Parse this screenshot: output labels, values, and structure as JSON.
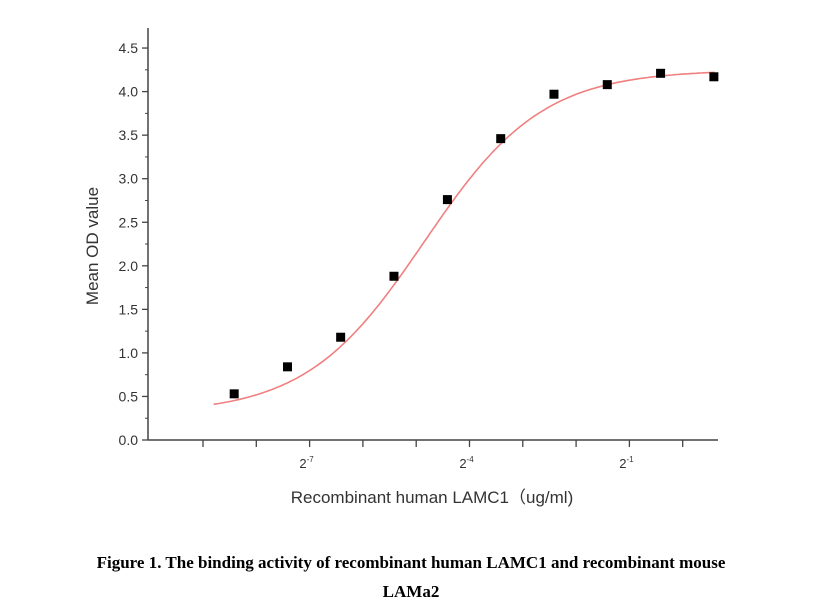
{
  "chart_data": {
    "type": "scatter",
    "xlabel": "Recombinant human  LAMC1（ug/ml)",
    "ylabel": "Mean OD value",
    "x_scale": "log2",
    "x_tick_labels": [
      {
        "base": "2",
        "exp": "-7",
        "value": -7
      },
      {
        "base": "2",
        "exp": "-4",
        "value": -4
      },
      {
        "base": "2",
        "exp": "-1",
        "value": -1
      }
    ],
    "y_ticks": [
      "0.0",
      "0.5",
      "1.0",
      "1.5",
      "2.0",
      "2.5",
      "3.0",
      "3.5",
      "4.0",
      "4.5"
    ],
    "ylim": [
      0,
      4.7
    ],
    "series": [
      {
        "x": [
          0.00293,
          0.00586,
          0.0117,
          0.0234,
          0.0469,
          0.0938,
          0.1875,
          0.375,
          0.75,
          1.5
        ],
        "y": [
          0.53,
          0.84,
          1.18,
          1.88,
          2.76,
          3.46,
          3.97,
          4.08,
          4.21,
          4.17
        ],
        "marker": "square",
        "marker_color": "#000000"
      }
    ],
    "fit_curve": {
      "type": "4PL sigmoid",
      "color": "#f08080"
    },
    "grid": false
  },
  "caption": {
    "line1": "Figure 1. The binding activity of recombinant human LAMC1 and recombinant mouse",
    "line2": "LAMa2"
  }
}
